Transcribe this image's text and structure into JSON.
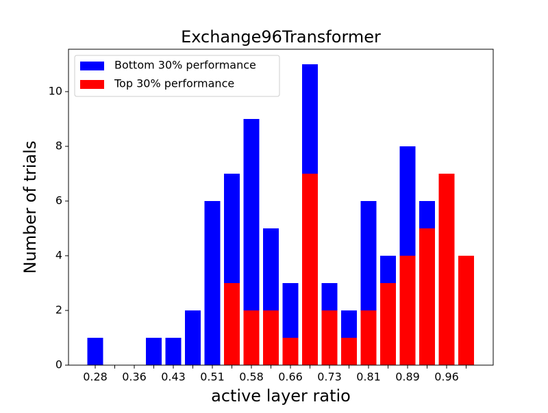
{
  "chart_data": {
    "type": "bar",
    "title": "Exchange96Transformer",
    "x_label": "active layer ratio",
    "y_label": "Number of trials",
    "categories": [
      "0.28",
      null,
      "0.36",
      null,
      "0.43",
      null,
      "0.51",
      null,
      "0.58",
      null,
      "0.66",
      null,
      "0.73",
      null,
      "0.81",
      null,
      "0.89",
      null,
      "0.96",
      null
    ],
    "series": [
      {
        "name": "Bottom 30% performance",
        "color": "#0000ff",
        "values": [
          1,
          0,
          0,
          1,
          1,
          2,
          6,
          7,
          9,
          5,
          3,
          11,
          3,
          2,
          6,
          4,
          8,
          6,
          0,
          0
        ]
      },
      {
        "name": "Top 30% performance",
        "color": "#ff0000",
        "values": [
          0,
          0,
          0,
          0,
          0,
          0,
          0,
          3,
          2,
          2,
          1,
          7,
          2,
          1,
          2,
          3,
          4,
          5,
          7,
          4
        ]
      }
    ],
    "ylim": [
      0,
      11.55
    ],
    "yticks": [
      0,
      2,
      4,
      6,
      8,
      10
    ],
    "legend": "upper left"
  }
}
